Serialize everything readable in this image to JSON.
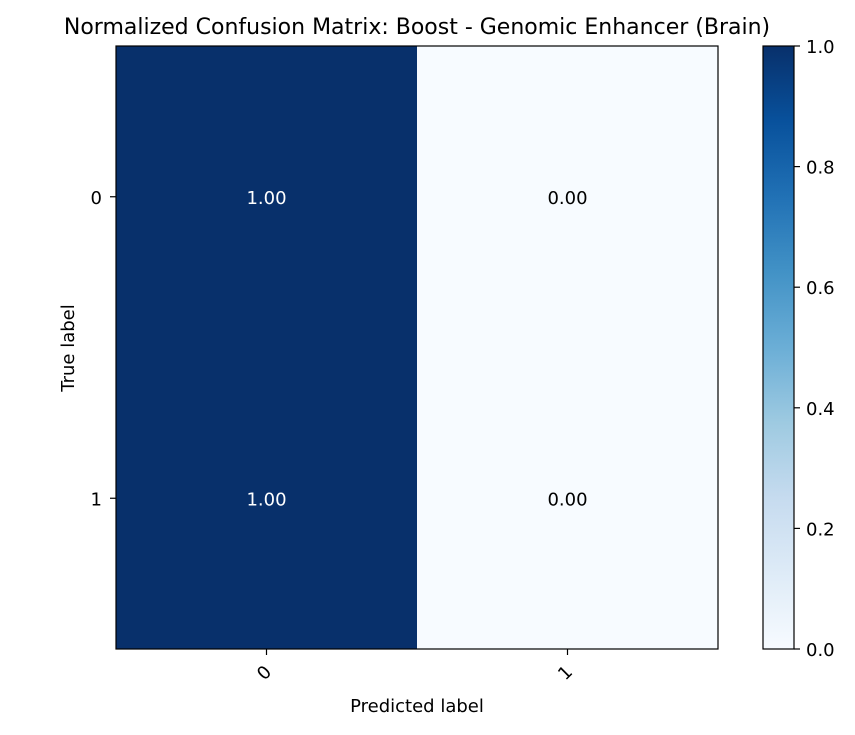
{
  "chart_data": {
    "type": "heatmap",
    "title": "Normalized Confusion Matrix: Boost - Genomic Enhancer (Brain)",
    "xlabel": "Predicted label",
    "ylabel": "True label",
    "x_categories": [
      "0",
      "1"
    ],
    "y_categories": [
      "0",
      "1"
    ],
    "matrix": [
      [
        1.0,
        0.0
      ],
      [
        1.0,
        0.0
      ]
    ],
    "cell_labels": [
      [
        "1.00",
        "0.00"
      ],
      [
        "1.00",
        "0.00"
      ]
    ],
    "colormap": "Blues",
    "colormap_stops": [
      "#f7fbff",
      "#deebf7",
      "#c6dbef",
      "#9ecae1",
      "#6baed6",
      "#4292c6",
      "#2171b5",
      "#08519c",
      "#08306b"
    ],
    "text_color_dark_cell": "#ffffff",
    "text_color_light_cell": "#000000",
    "colorbar": {
      "range": [
        0.0,
        1.0
      ],
      "ticks": [
        0.0,
        0.2,
        0.4,
        0.6,
        0.8,
        1.0
      ],
      "tick_labels": [
        "0.0",
        "0.2",
        "0.4",
        "0.6",
        "0.8",
        "1.0"
      ]
    }
  }
}
